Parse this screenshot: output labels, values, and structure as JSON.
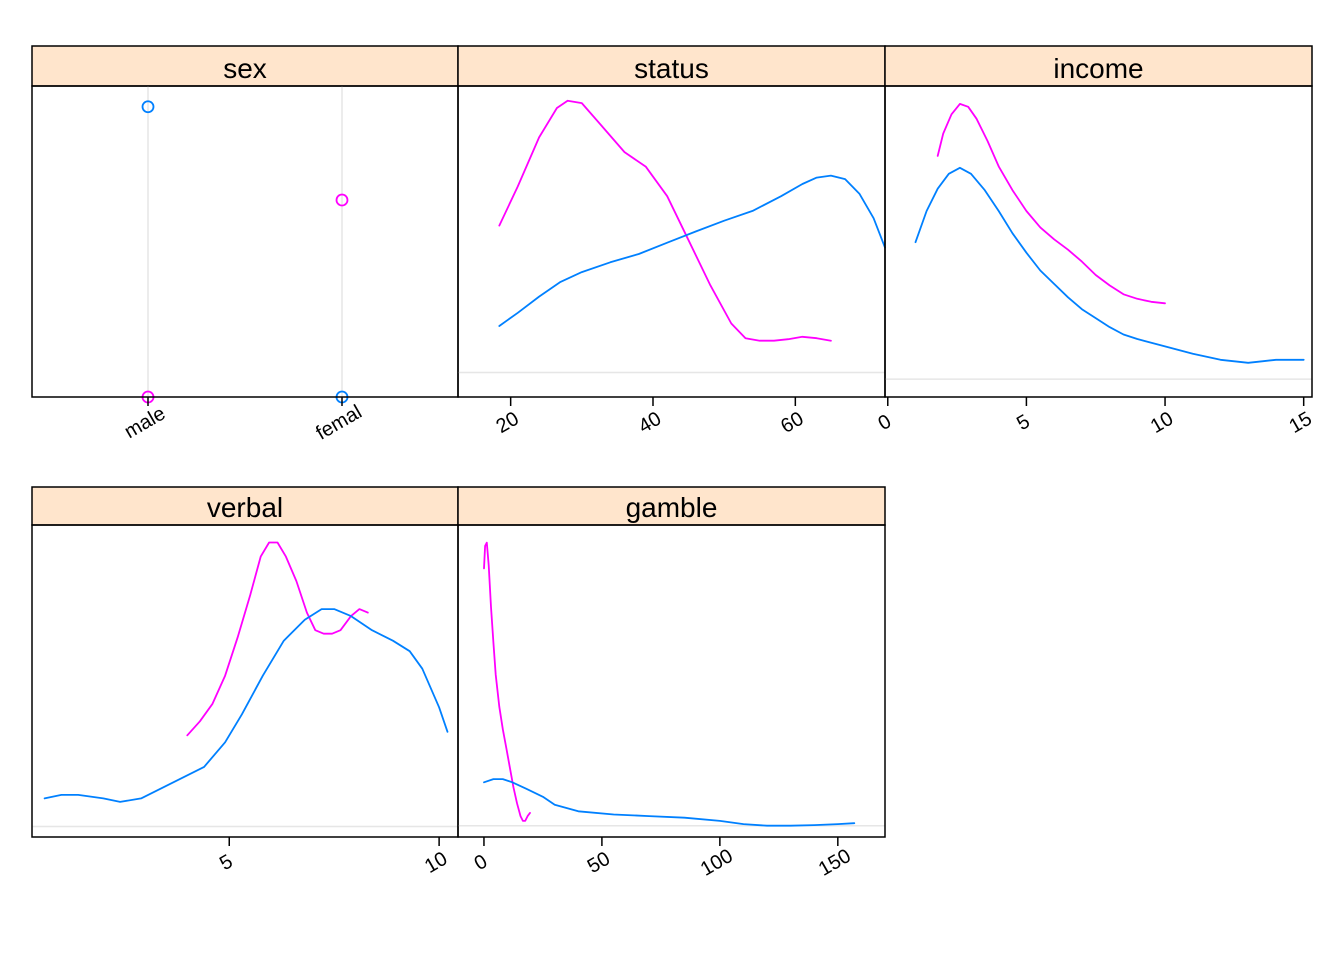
{
  "colors": {
    "strip_bg": "#FFE5CC",
    "frame": "#000000",
    "reference": "#E6E6E6",
    "series_blue": "#0080FF",
    "series_magenta": "#FF00FF",
    "background": "#FFFFFF"
  },
  "chart_data": [
    {
      "panel": "sex",
      "type": "scatter",
      "title": "sex",
      "categories": [
        "male",
        "femal"
      ],
      "tick_labels": [
        "male",
        "femal"
      ],
      "ylim": [
        0.0,
        0.6
      ],
      "grid": "vertical reference lines at each category",
      "series": [
        {
          "color": "#0080FF",
          "values": [
            0.56,
            0.0
          ]
        },
        {
          "color": "#FF00FF",
          "values": [
            0.0,
            0.38
          ]
        }
      ]
    },
    {
      "panel": "status",
      "type": "line",
      "title": "status",
      "xlim": [
        12.6,
        72.6
      ],
      "ylim": [
        -0.005,
        0.0585
      ],
      "ticks": [
        20,
        40,
        60
      ],
      "tick_labels": [
        "20",
        "40",
        "60"
      ],
      "reference_y": 0,
      "series": [
        {
          "color": "#FF00FF",
          "points": [
            [
              18.4,
              0.03
            ],
            [
              21,
              0.038
            ],
            [
              24,
              0.048
            ],
            [
              26.5,
              0.054
            ],
            [
              28,
              0.0555
            ],
            [
              30,
              0.055
            ],
            [
              33,
              0.05
            ],
            [
              36,
              0.045
            ],
            [
              39,
              0.042
            ],
            [
              42,
              0.036
            ],
            [
              45,
              0.027
            ],
            [
              48,
              0.018
            ],
            [
              51,
              0.01
            ],
            [
              53,
              0.007
            ],
            [
              55,
              0.0065
            ],
            [
              57,
              0.0065
            ],
            [
              59,
              0.0068
            ],
            [
              61,
              0.0073
            ],
            [
              63,
              0.007
            ],
            [
              65,
              0.0065
            ]
          ]
        },
        {
          "color": "#0080FF",
          "points": [
            [
              18.4,
              0.0095
            ],
            [
              21,
              0.0122
            ],
            [
              24,
              0.0155
            ],
            [
              27,
              0.0185
            ],
            [
              30,
              0.0205
            ],
            [
              34,
              0.0225
            ],
            [
              38,
              0.0242
            ],
            [
              42,
              0.0265
            ],
            [
              46,
              0.0288
            ],
            [
              50,
              0.031
            ],
            [
              54,
              0.033
            ],
            [
              58,
              0.036
            ],
            [
              61,
              0.0385
            ],
            [
              63,
              0.0398
            ],
            [
              65,
              0.0402
            ],
            [
              67,
              0.0395
            ],
            [
              69,
              0.0365
            ],
            [
              71,
              0.0315
            ],
            [
              72.6,
              0.0255
            ]
          ]
        }
      ]
    },
    {
      "panel": "income",
      "type": "line",
      "title": "income",
      "xlim": [
        -0.1,
        15.3
      ],
      "ylim": [
        -0.012,
        0.197
      ],
      "ticks": [
        0,
        5,
        10,
        15
      ],
      "tick_labels": [
        "0",
        "5",
        "10",
        "15"
      ],
      "reference_y": 0,
      "series": [
        {
          "color": "#FF00FF",
          "points": [
            [
              1.8,
              0.15
            ],
            [
              2.0,
              0.165
            ],
            [
              2.3,
              0.178
            ],
            [
              2.6,
              0.185
            ],
            [
              2.9,
              0.183
            ],
            [
              3.2,
              0.175
            ],
            [
              3.6,
              0.16
            ],
            [
              4.0,
              0.143
            ],
            [
              4.5,
              0.127
            ],
            [
              5.0,
              0.113
            ],
            [
              5.5,
              0.102
            ],
            [
              6.0,
              0.094
            ],
            [
              6.5,
              0.087
            ],
            [
              7.0,
              0.079
            ],
            [
              7.5,
              0.07
            ],
            [
              8.0,
              0.063
            ],
            [
              8.5,
              0.057
            ],
            [
              9.0,
              0.054
            ],
            [
              9.5,
              0.052
            ],
            [
              10.0,
              0.051
            ]
          ]
        },
        {
          "color": "#0080FF",
          "points": [
            [
              1.0,
              0.092
            ],
            [
              1.4,
              0.113
            ],
            [
              1.8,
              0.128
            ],
            [
              2.2,
              0.138
            ],
            [
              2.6,
              0.142
            ],
            [
              3.0,
              0.138
            ],
            [
              3.5,
              0.127
            ],
            [
              4.0,
              0.113
            ],
            [
              4.5,
              0.098
            ],
            [
              5.0,
              0.085
            ],
            [
              5.5,
              0.073
            ],
            [
              6.0,
              0.064
            ],
            [
              6.5,
              0.055
            ],
            [
              7.0,
              0.047
            ],
            [
              7.5,
              0.041
            ],
            [
              8.0,
              0.035
            ],
            [
              8.5,
              0.03
            ],
            [
              9.0,
              0.027
            ],
            [
              10.0,
              0.022
            ],
            [
              11.0,
              0.017
            ],
            [
              12.0,
              0.013
            ],
            [
              12.5,
              0.012
            ],
            [
              13.0,
              0.011
            ],
            [
              13.5,
              0.012
            ],
            [
              14.0,
              0.013
            ],
            [
              15.0,
              0.013
            ]
          ]
        }
      ]
    },
    {
      "panel": "verbal",
      "type": "line",
      "title": "verbal",
      "xlim": [
        0.3,
        10.45
      ],
      "ylim": [
        -0.03,
        0.86
      ],
      "ticks": [
        5,
        10
      ],
      "tick_labels": [
        "5",
        "10"
      ],
      "reference_y": 0,
      "series": [
        {
          "color": "#FF00FF",
          "points": [
            [
              4.0,
              0.26
            ],
            [
              4.3,
              0.3
            ],
            [
              4.6,
              0.35
            ],
            [
              4.9,
              0.43
            ],
            [
              5.2,
              0.54
            ],
            [
              5.5,
              0.66
            ],
            [
              5.75,
              0.77
            ],
            [
              5.95,
              0.81
            ],
            [
              6.15,
              0.81
            ],
            [
              6.35,
              0.77
            ],
            [
              6.6,
              0.7
            ],
            [
              6.85,
              0.61
            ],
            [
              7.05,
              0.56
            ],
            [
              7.25,
              0.55
            ],
            [
              7.45,
              0.55
            ],
            [
              7.65,
              0.56
            ],
            [
              7.9,
              0.6
            ],
            [
              8.1,
              0.62
            ],
            [
              8.3,
              0.61
            ]
          ]
        },
        {
          "color": "#0080FF",
          "points": [
            [
              0.6,
              0.08
            ],
            [
              1.0,
              0.09
            ],
            [
              1.4,
              0.09
            ],
            [
              2.0,
              0.08
            ],
            [
              2.4,
              0.07
            ],
            [
              2.9,
              0.08
            ],
            [
              3.4,
              0.11
            ],
            [
              3.9,
              0.14
            ],
            [
              4.4,
              0.17
            ],
            [
              4.9,
              0.24
            ],
            [
              5.3,
              0.32
            ],
            [
              5.8,
              0.43
            ],
            [
              6.3,
              0.53
            ],
            [
              6.8,
              0.59
            ],
            [
              7.2,
              0.62
            ],
            [
              7.5,
              0.62
            ],
            [
              7.9,
              0.6
            ],
            [
              8.4,
              0.56
            ],
            [
              8.9,
              0.53
            ],
            [
              9.3,
              0.5
            ],
            [
              9.6,
              0.45
            ],
            [
              10.0,
              0.34
            ],
            [
              10.2,
              0.27
            ]
          ]
        }
      ]
    },
    {
      "panel": "gamble",
      "type": "line",
      "title": "gamble",
      "xlim": [
        -11,
        170
      ],
      "ylim": [
        -0.0035,
        0.0935
      ],
      "ticks": [
        0,
        50,
        100,
        150
      ],
      "tick_labels": [
        "0",
        "50",
        "100",
        "150"
      ],
      "reference_y": 0,
      "series": [
        {
          "color": "#FF00FF",
          "points": [
            [
              0.0,
              0.08
            ],
            [
              0.5,
              0.087
            ],
            [
              1.2,
              0.088
            ],
            [
              2.0,
              0.081
            ],
            [
              3.0,
              0.068
            ],
            [
              4.0,
              0.057
            ],
            [
              5.0,
              0.047
            ],
            [
              6.5,
              0.037
            ],
            [
              8.0,
              0.03
            ],
            [
              9.5,
              0.024
            ],
            [
              11.0,
              0.018
            ],
            [
              12.5,
              0.012
            ],
            [
              14.0,
              0.007
            ],
            [
              15.5,
              0.003
            ],
            [
              16.5,
              0.0015
            ],
            [
              17.5,
              0.0015
            ],
            [
              18.5,
              0.003
            ],
            [
              19.5,
              0.004
            ]
          ]
        },
        {
          "color": "#0080FF",
          "points": [
            [
              0.0,
              0.0135
            ],
            [
              4.0,
              0.0145
            ],
            [
              8.0,
              0.0145
            ],
            [
              12.0,
              0.0135
            ],
            [
              18.0,
              0.0115
            ],
            [
              25.0,
              0.009
            ],
            [
              30.0,
              0.0065
            ],
            [
              40.0,
              0.0045
            ],
            [
              55.0,
              0.0035
            ],
            [
              70.0,
              0.003
            ],
            [
              85.0,
              0.0025
            ],
            [
              100.0,
              0.0015
            ],
            [
              110.0,
              0.0005
            ],
            [
              120.0,
              0.0
            ],
            [
              130.0,
              0.0
            ],
            [
              140.0,
              0.0002
            ],
            [
              150.0,
              0.0005
            ],
            [
              157.0,
              0.0008
            ]
          ]
        }
      ]
    }
  ]
}
